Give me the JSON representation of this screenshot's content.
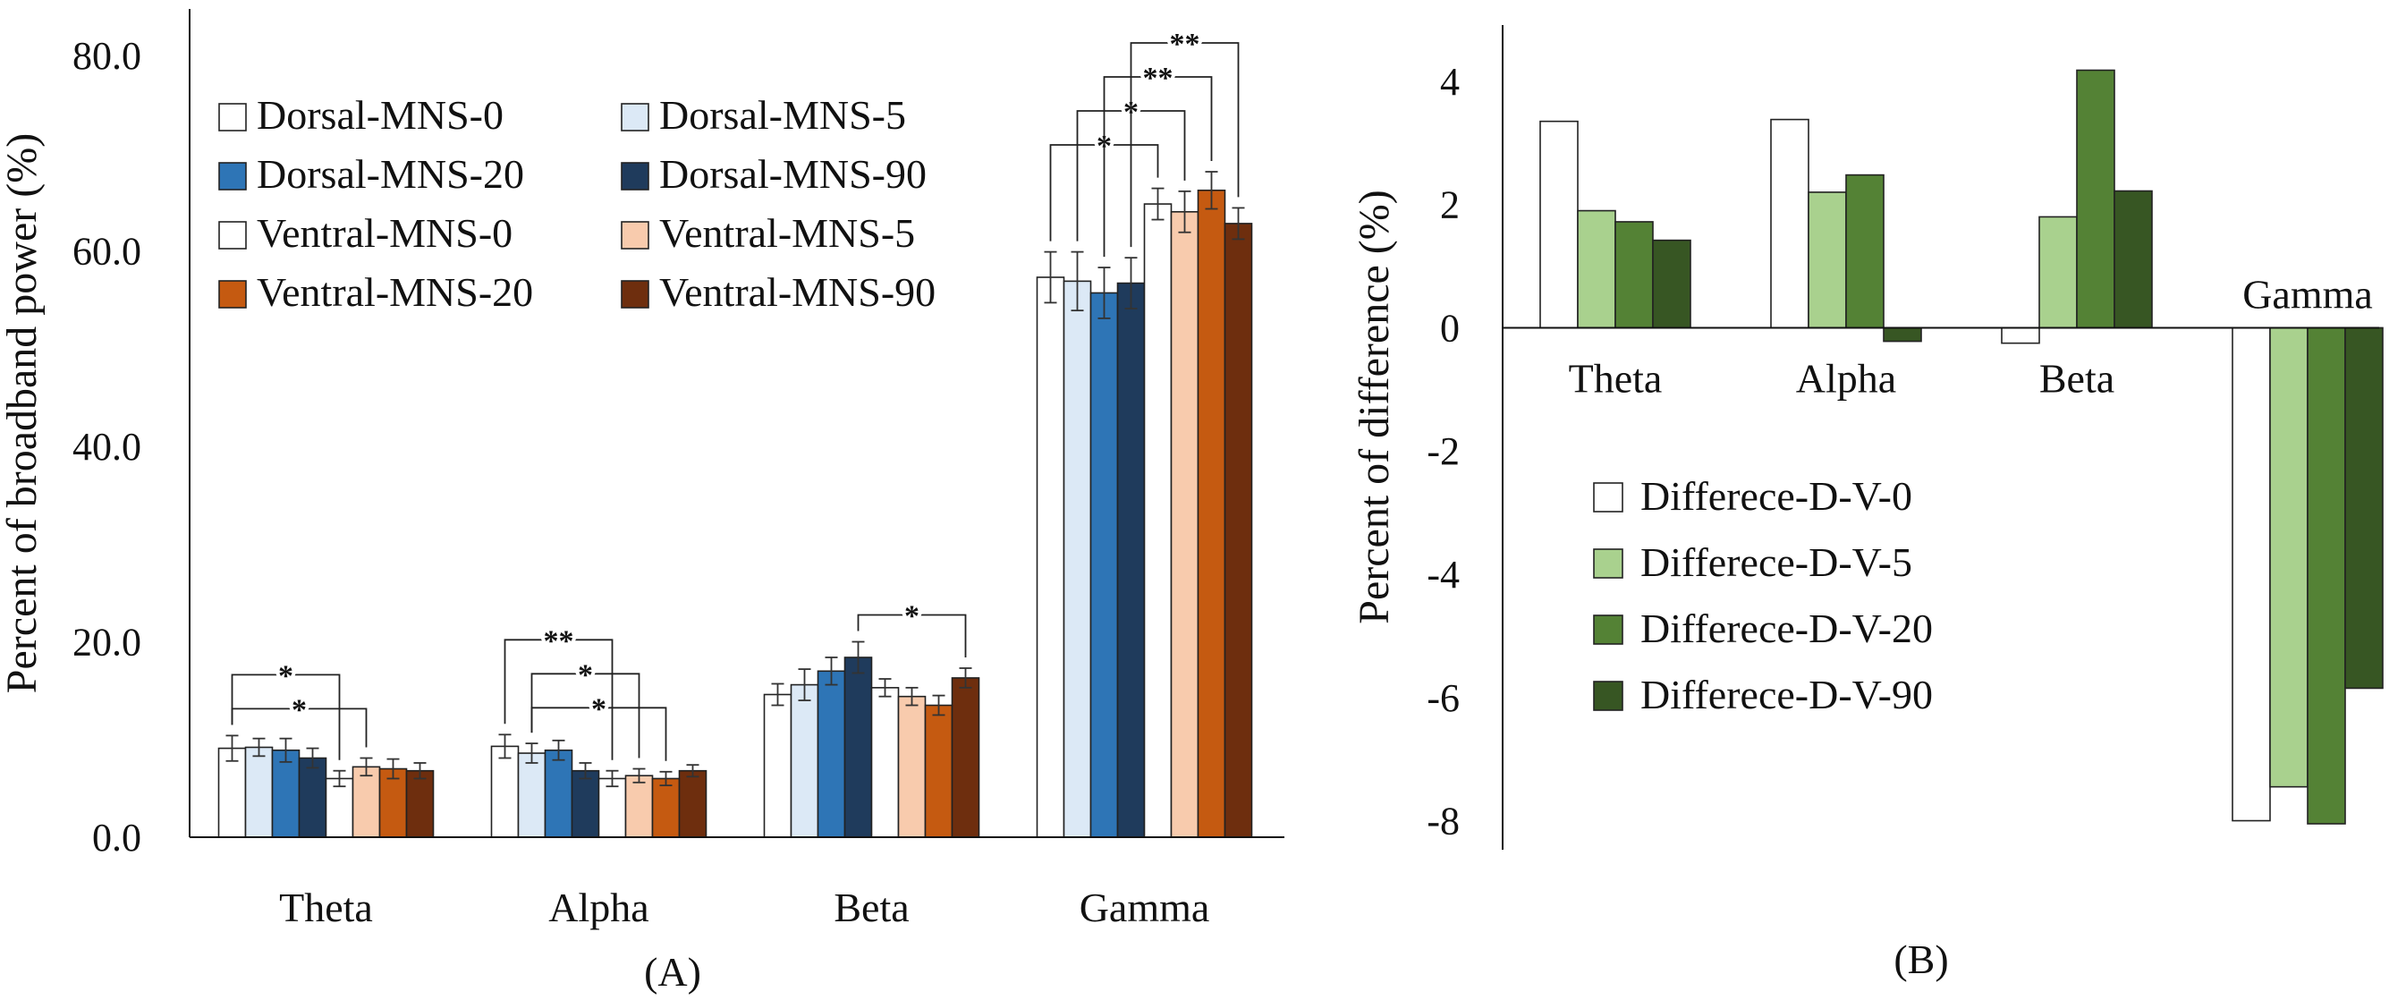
{
  "chart_data": [
    {
      "type": "bar",
      "panel_label": "(A)",
      "ylabel": "Percent of broadband power (%)",
      "xlabel": "",
      "ylim": [
        0,
        80
      ],
      "yticks": [
        "0.0",
        "20.0",
        "40.0",
        "60.0",
        "80.0"
      ],
      "grid": false,
      "legend_position": "top-left",
      "categories": [
        "Theta",
        "Alpha",
        "Beta",
        "Gamma"
      ],
      "series": [
        {
          "name": "Dorsal-MNS-0",
          "color": "#ffffff",
          "values": [
            9.1,
            9.3,
            14.6,
            57.3
          ],
          "errors": [
            1.3,
            1.2,
            1.1,
            2.6
          ]
        },
        {
          "name": "Dorsal-MNS-5",
          "color": "#dce9f6",
          "values": [
            9.2,
            8.6,
            15.6,
            56.9
          ],
          "errors": [
            0.9,
            1.0,
            1.6,
            3.0
          ]
        },
        {
          "name": "Dorsal-MNS-20",
          "color": "#2e75b6",
          "values": [
            8.9,
            8.9,
            17.0,
            55.7
          ],
          "errors": [
            1.2,
            1.0,
            1.4,
            2.6
          ]
        },
        {
          "name": "Dorsal-MNS-90",
          "color": "#1f3b5c",
          "values": [
            8.1,
            6.8,
            18.4,
            56.7
          ],
          "errors": [
            1.0,
            0.8,
            1.6,
            2.6
          ]
        },
        {
          "name": "Ventral-MNS-0",
          "color": "#ffffff",
          "values": [
            6.0,
            6.0,
            15.3,
            64.8
          ],
          "errors": [
            0.8,
            0.8,
            0.9,
            1.6
          ]
        },
        {
          "name": "Ventral-MNS-5",
          "color": "#f8cbad",
          "values": [
            7.2,
            6.3,
            14.4,
            64.0
          ],
          "errors": [
            0.9,
            0.7,
            0.9,
            2.1
          ]
        },
        {
          "name": "Ventral-MNS-20",
          "color": "#c55a11",
          "values": [
            7.0,
            6.0,
            13.5,
            66.2
          ],
          "errors": [
            1.0,
            0.7,
            1.0,
            1.9
          ]
        },
        {
          "name": "Ventral-MNS-90",
          "color": "#6e2e0e",
          "values": [
            6.8,
            6.8,
            16.3,
            62.8
          ],
          "errors": [
            0.8,
            0.6,
            1.0,
            1.6
          ]
        }
      ],
      "significance": [
        {
          "category": "Theta",
          "from_series": 0,
          "to_series": 5,
          "label": "*"
        },
        {
          "category": "Theta",
          "from_series": 0,
          "to_series": 4,
          "label": "*"
        },
        {
          "category": "Alpha",
          "from_series": 1,
          "to_series": 6,
          "label": "*"
        },
        {
          "category": "Alpha",
          "from_series": 1,
          "to_series": 5,
          "label": "*"
        },
        {
          "category": "Alpha",
          "from_series": 0,
          "to_series": 4,
          "label": "**"
        },
        {
          "category": "Beta",
          "from_series": 3,
          "to_series": 7,
          "label": "*"
        },
        {
          "category": "Gamma",
          "from_series": 0,
          "to_series": 4,
          "label": "*"
        },
        {
          "category": "Gamma",
          "from_series": 1,
          "to_series": 5,
          "label": "*"
        },
        {
          "category": "Gamma",
          "from_series": 2,
          "to_series": 6,
          "label": "**"
        },
        {
          "category": "Gamma",
          "from_series": 3,
          "to_series": 7,
          "label": "**"
        }
      ]
    },
    {
      "type": "bar",
      "panel_label": "(B)",
      "ylabel": "Percent of difference (%)",
      "xlabel": "",
      "ylim": [
        -8.5,
        5
      ],
      "yticks": [
        "-8",
        "-6",
        "-4",
        "-2",
        "0",
        "2",
        "4"
      ],
      "grid": false,
      "legend_position": "center-left",
      "categories": [
        "Theta",
        "Alpha",
        "Beta",
        "Gamma"
      ],
      "series": [
        {
          "name": "Differece-D-V-0",
          "color": "#ffffff",
          "values": [
            3.35,
            3.38,
            -0.25,
            -8.0
          ]
        },
        {
          "name": "Differece-D-V-5",
          "color": "#a9d18e",
          "values": [
            1.9,
            2.2,
            1.8,
            -7.45
          ]
        },
        {
          "name": "Differece-D-V-20",
          "color": "#548235",
          "values": [
            1.72,
            2.48,
            4.18,
            -8.05
          ]
        },
        {
          "name": "Differece-D-V-90",
          "color": "#375623",
          "values": [
            1.42,
            -0.22,
            2.22,
            -5.85
          ]
        }
      ]
    }
  ]
}
